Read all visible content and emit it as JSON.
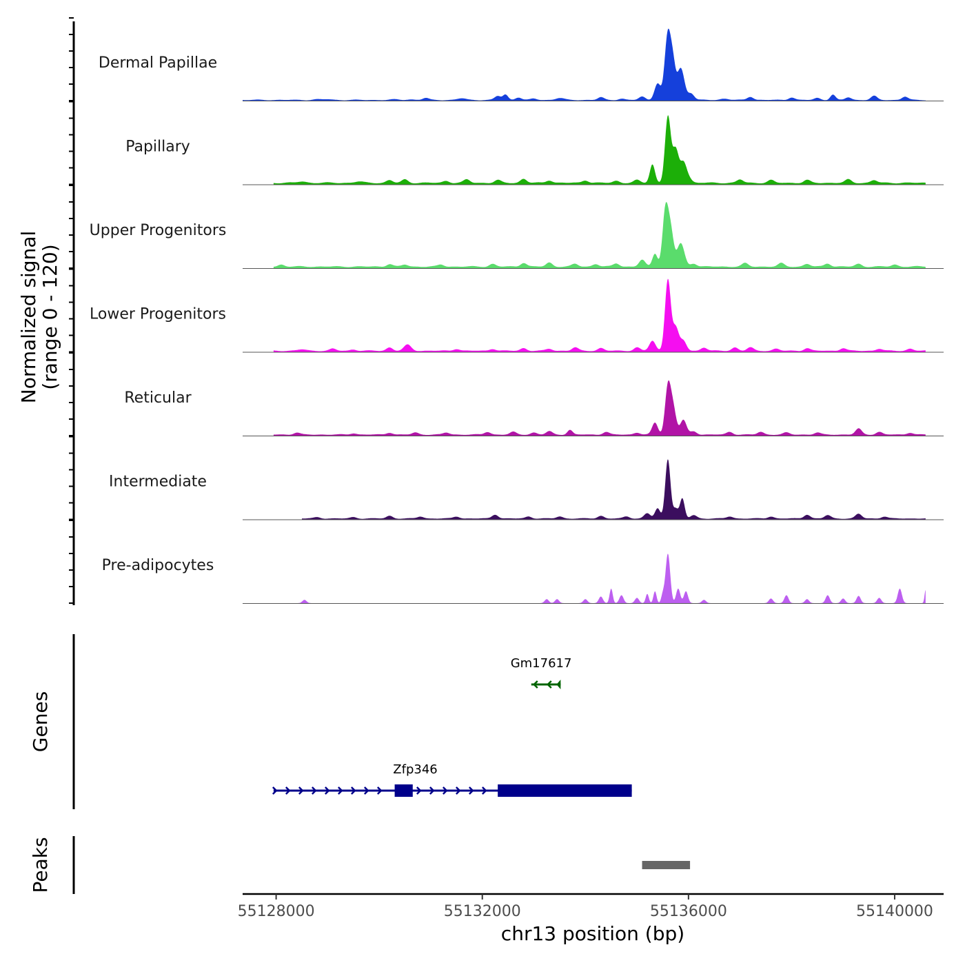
{
  "chart_data": {
    "type": "area",
    "title": "",
    "chromosome": "chr13",
    "xlabel": "chr13 position (bp)",
    "ylabel_line1": "Normalized signal",
    "ylabel_line2": "(range 0 - 120)",
    "xlim": [
      55127350,
      55140950
    ],
    "ylim": [
      0,
      120
    ],
    "x_ticks": [
      55128000,
      55132000,
      55136000,
      55140000
    ],
    "x_tick_labels": [
      "55128000",
      "55132000",
      "55136000",
      "55140000"
    ],
    "panel_labels": {
      "genes": "Genes",
      "peaks": "Peaks"
    },
    "tracks": [
      {
        "name": "Dermal Papillae",
        "color": "#1540db",
        "start": 55127350,
        "end": 55140600,
        "baseline": 0.4,
        "noise": 1.3,
        "bumps": [
          [
            55128800,
            1,
            80
          ],
          [
            55129000,
            1,
            80
          ],
          [
            55130300,
            0.8,
            80
          ],
          [
            55130600,
            0.8,
            80
          ],
          [
            55130900,
            3,
            60
          ],
          [
            55131600,
            2.5,
            80
          ],
          [
            55132300,
            6,
            60
          ],
          [
            55132450,
            8,
            50
          ],
          [
            55132700,
            4,
            60
          ],
          [
            55133000,
            2,
            60
          ],
          [
            55133500,
            3,
            80
          ],
          [
            55134300,
            4,
            60
          ],
          [
            55134700,
            2,
            60
          ],
          [
            55135100,
            5,
            60
          ],
          [
            55135400,
            25,
            60
          ],
          [
            55135600,
            100,
            60
          ],
          [
            55135700,
            45,
            50
          ],
          [
            55135850,
            48,
            70
          ],
          [
            55136050,
            10,
            60
          ],
          [
            55136700,
            2,
            80
          ],
          [
            55137200,
            5,
            60
          ],
          [
            55138000,
            4,
            60
          ],
          [
            55138500,
            3,
            60
          ],
          [
            55138800,
            8,
            50
          ],
          [
            55139100,
            4,
            60
          ],
          [
            55139600,
            6,
            60
          ],
          [
            55140200,
            5,
            60
          ]
        ]
      },
      {
        "name": "Papillary",
        "color": "#1caf08",
        "start": 55127950,
        "end": 55140600,
        "baseline": 1.5,
        "noise": 1.8,
        "bumps": [
          [
            55128500,
            2,
            80
          ],
          [
            55129600,
            2,
            80
          ],
          [
            55130200,
            4,
            60
          ],
          [
            55130500,
            5,
            60
          ],
          [
            55131300,
            3,
            60
          ],
          [
            55131700,
            5,
            60
          ],
          [
            55132300,
            4,
            60
          ],
          [
            55132800,
            6,
            60
          ],
          [
            55133300,
            4,
            60
          ],
          [
            55134000,
            4,
            60
          ],
          [
            55134600,
            3,
            60
          ],
          [
            55135000,
            4,
            60
          ],
          [
            55135300,
            28,
            50
          ],
          [
            55135600,
            100,
            55
          ],
          [
            55135750,
            50,
            60
          ],
          [
            55135900,
            30,
            60
          ],
          [
            55136000,
            7,
            60
          ],
          [
            55137000,
            5,
            60
          ],
          [
            55137600,
            4,
            60
          ],
          [
            55138300,
            4,
            60
          ],
          [
            55139100,
            5,
            60
          ],
          [
            55139600,
            4,
            60
          ]
        ]
      },
      {
        "name": "Upper Progenitors",
        "color": "#5adc6c",
        "start": 55127950,
        "end": 55140600,
        "baseline": 1.5,
        "noise": 1.8,
        "bumps": [
          [
            55128100,
            3,
            60
          ],
          [
            55130200,
            4,
            60
          ],
          [
            55130500,
            3,
            60
          ],
          [
            55131200,
            3,
            60
          ],
          [
            55132200,
            4,
            60
          ],
          [
            55132800,
            6,
            60
          ],
          [
            55133300,
            6,
            60
          ],
          [
            55133800,
            4,
            60
          ],
          [
            55134200,
            4,
            60
          ],
          [
            55134600,
            5,
            60
          ],
          [
            55135100,
            10,
            60
          ],
          [
            55135350,
            20,
            50
          ],
          [
            55135550,
            80,
            55
          ],
          [
            55135650,
            55,
            60
          ],
          [
            55135850,
            35,
            70
          ],
          [
            55136100,
            5,
            60
          ],
          [
            55137100,
            5,
            60
          ],
          [
            55137800,
            5,
            60
          ],
          [
            55138300,
            4,
            60
          ],
          [
            55138700,
            5,
            60
          ],
          [
            55139300,
            4,
            60
          ],
          [
            55140000,
            3,
            60
          ]
        ]
      },
      {
        "name": "Lower Progenitors",
        "color": "#f50ef0",
        "start": 55127950,
        "end": 55140600,
        "baseline": 1.0,
        "noise": 1.5,
        "bumps": [
          [
            55128500,
            2,
            80
          ],
          [
            55129100,
            3,
            60
          ],
          [
            55129500,
            2,
            60
          ],
          [
            55130200,
            5,
            60
          ],
          [
            55130550,
            9,
            70
          ],
          [
            55131500,
            3,
            60
          ],
          [
            55132200,
            3,
            60
          ],
          [
            55132800,
            4,
            60
          ],
          [
            55133300,
            3,
            60
          ],
          [
            55133800,
            5,
            60
          ],
          [
            55134300,
            4,
            60
          ],
          [
            55135000,
            5,
            60
          ],
          [
            55135300,
            15,
            60
          ],
          [
            55135600,
            108,
            55
          ],
          [
            55135750,
            35,
            60
          ],
          [
            55135900,
            15,
            60
          ],
          [
            55136300,
            5,
            60
          ],
          [
            55136900,
            5,
            60
          ],
          [
            55137200,
            5,
            60
          ],
          [
            55137700,
            3,
            60
          ],
          [
            55138300,
            4,
            60
          ],
          [
            55139000,
            4,
            60
          ],
          [
            55139700,
            3,
            60
          ],
          [
            55140300,
            3,
            60
          ]
        ]
      },
      {
        "name": "Reticular",
        "color": "#b114a6",
        "start": 55127950,
        "end": 55140600,
        "baseline": 1.0,
        "noise": 1.3,
        "bumps": [
          [
            55128400,
            3,
            60
          ],
          [
            55129500,
            2,
            60
          ],
          [
            55130200,
            3,
            60
          ],
          [
            55130700,
            3,
            60
          ],
          [
            55131300,
            3,
            60
          ],
          [
            55132100,
            4,
            60
          ],
          [
            55132600,
            4,
            60
          ],
          [
            55133000,
            3,
            60
          ],
          [
            55133300,
            5,
            60
          ],
          [
            55133700,
            7,
            50
          ],
          [
            55134400,
            4,
            60
          ],
          [
            55135000,
            3,
            60
          ],
          [
            55135350,
            18,
            55
          ],
          [
            55135600,
            70,
            55
          ],
          [
            55135700,
            40,
            60
          ],
          [
            55135900,
            22,
            60
          ],
          [
            55136100,
            5,
            60
          ],
          [
            55136800,
            4,
            60
          ],
          [
            55137400,
            4,
            60
          ],
          [
            55137900,
            3,
            60
          ],
          [
            55138500,
            3,
            60
          ],
          [
            55139300,
            9,
            60
          ],
          [
            55139700,
            4,
            60
          ],
          [
            55140300,
            3,
            60
          ]
        ]
      },
      {
        "name": "Intermediate",
        "color": "#3b0e5e",
        "start": 55128500,
        "end": 55140600,
        "baseline": 0.8,
        "noise": 1.2,
        "bumps": [
          [
            55128800,
            2,
            60
          ],
          [
            55129500,
            2,
            60
          ],
          [
            55130200,
            4,
            60
          ],
          [
            55130800,
            3,
            60
          ],
          [
            55131500,
            3,
            60
          ],
          [
            55132250,
            6,
            60
          ],
          [
            55132900,
            3,
            60
          ],
          [
            55133500,
            3,
            60
          ],
          [
            55134300,
            4,
            60
          ],
          [
            55134800,
            3,
            60
          ],
          [
            55135200,
            8,
            60
          ],
          [
            55135400,
            15,
            50
          ],
          [
            55135600,
            90,
            50
          ],
          [
            55135750,
            15,
            50
          ],
          [
            55135880,
            30,
            45
          ],
          [
            55136100,
            5,
            60
          ],
          [
            55136800,
            3,
            60
          ],
          [
            55137600,
            3,
            60
          ],
          [
            55138300,
            6,
            60
          ],
          [
            55138700,
            5,
            60
          ],
          [
            55139300,
            7,
            60
          ],
          [
            55139800,
            3,
            60
          ]
        ]
      },
      {
        "name": "Pre-adipocytes",
        "color": "#bd5ff0",
        "start": 55127350,
        "end": 55140600,
        "baseline": 0,
        "noise": 0,
        "bumps": [
          [
            55128550,
            5,
            40
          ],
          [
            55133250,
            6,
            40
          ],
          [
            55133450,
            6,
            40
          ],
          [
            55134000,
            6,
            40
          ],
          [
            55134300,
            10,
            40
          ],
          [
            55134500,
            22,
            30
          ],
          [
            55134700,
            12,
            40
          ],
          [
            55135000,
            8,
            40
          ],
          [
            55135200,
            14,
            30
          ],
          [
            55135350,
            18,
            30
          ],
          [
            55135500,
            12,
            30
          ],
          [
            55135600,
            75,
            45
          ],
          [
            55135800,
            22,
            40
          ],
          [
            55135950,
            18,
            40
          ],
          [
            55136300,
            5,
            40
          ],
          [
            55137600,
            7,
            40
          ],
          [
            55137900,
            12,
            40
          ],
          [
            55138300,
            6,
            40
          ],
          [
            55138700,
            12,
            40
          ],
          [
            55139000,
            7,
            40
          ],
          [
            55139300,
            11,
            40
          ],
          [
            55139700,
            8,
            40
          ],
          [
            55140100,
            22,
            40
          ],
          [
            55140600,
            20,
            20
          ]
        ]
      }
    ],
    "genes": [
      {
        "name": "Gm17617",
        "strand": "-",
        "color": "#006400",
        "start": 55132950,
        "end": 55133520,
        "exons": [],
        "row": 0
      },
      {
        "name": "Zfp346",
        "strand": "+",
        "color": "#00008b",
        "start": 55127950,
        "end": 55134900,
        "row": 1,
        "exons": [
          [
            55130300,
            55130650
          ],
          [
            55132300,
            55134900
          ]
        ]
      }
    ],
    "peaks": [
      {
        "start": 55135100,
        "end": 55136030,
        "color": "#666666"
      }
    ]
  }
}
